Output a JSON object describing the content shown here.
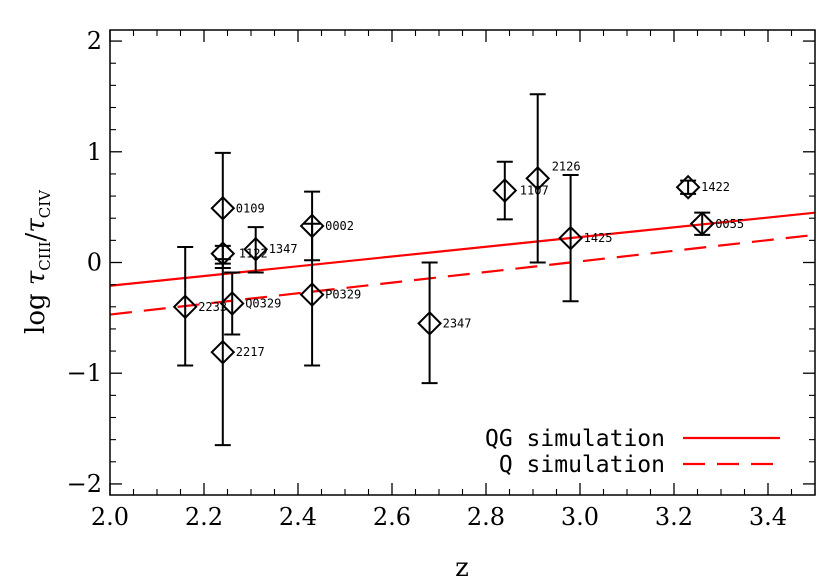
{
  "chart_data": {
    "type": "scatter",
    "xlabel": "z",
    "ylabel": "log τ_CIII/τ_CIV",
    "xlim": [
      2.0,
      3.5
    ],
    "ylim": [
      -2.1,
      2.1
    ],
    "x_ticks": [
      "2.0",
      "2.2",
      "2.4",
      "2.6",
      "2.8",
      "3.0",
      "3.2",
      "3.4"
    ],
    "y_ticks": [
      "−2",
      "−1",
      "0",
      "1",
      "2"
    ],
    "grid": false,
    "legend_position": "bottom-right",
    "colors": {
      "data": "#000000",
      "models": "#ff0000"
    },
    "series": [
      {
        "kind": "points",
        "marker": "open-diamond",
        "points": [
          {
            "label": "2233",
            "x": 2.16,
            "y": -0.4,
            "lo": -0.93,
            "hi": 0.14
          },
          {
            "label": "0109",
            "x": 2.24,
            "y": 0.49,
            "lo": -0.01,
            "hi": 0.99
          },
          {
            "label": "1122",
            "x": 2.24,
            "y": 0.08,
            "lo": -0.05,
            "hi": 0.15
          },
          {
            "label": "2217",
            "x": 2.24,
            "y": -0.81,
            "lo": -1.65,
            "hi": 0.03
          },
          {
            "label": "Q0329",
            "x": 2.26,
            "y": -0.37,
            "lo": -0.65,
            "hi": -0.09
          },
          {
            "label": "1347",
            "x": 2.31,
            "y": 0.12,
            "lo": -0.09,
            "hi": 0.32
          },
          {
            "label": "0002",
            "x": 2.43,
            "y": 0.33,
            "lo": 0.02,
            "hi": 0.64
          },
          {
            "label": "P0329",
            "x": 2.43,
            "y": -0.29,
            "lo": -0.93,
            "hi": 0.35
          },
          {
            "label": "2347",
            "x": 2.68,
            "y": -0.55,
            "lo": -1.09,
            "hi": 0.0
          },
          {
            "label": "1107",
            "x": 2.84,
            "y": 0.65,
            "lo": 0.39,
            "hi": 0.91
          },
          {
            "label": "2126",
            "x": 2.91,
            "y": 0.76,
            "lo": 0.0,
            "hi": 1.52
          },
          {
            "label": "1425",
            "x": 2.98,
            "y": 0.22,
            "lo": -0.35,
            "hi": 0.79
          },
          {
            "label": "1422",
            "x": 3.23,
            "y": 0.68,
            "lo": 0.62,
            "hi": 0.74
          },
          {
            "label": "0055",
            "x": 3.26,
            "y": 0.35,
            "lo": 0.25,
            "hi": 0.45
          }
        ]
      },
      {
        "name": "QG simulation",
        "kind": "line",
        "style": "solid",
        "x": [
          2.0,
          3.5
        ],
        "y": [
          -0.21,
          0.45
        ]
      },
      {
        "name": "Q simulation",
        "kind": "line",
        "style": "dashed",
        "x": [
          2.0,
          3.5
        ],
        "y": [
          -0.47,
          0.25
        ]
      }
    ]
  }
}
